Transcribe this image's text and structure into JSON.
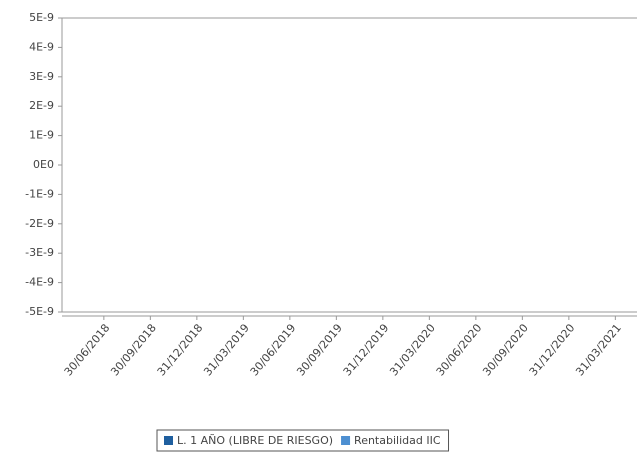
{
  "chart_data": {
    "type": "bar",
    "categories": [
      "30/06/2018",
      "30/09/2018",
      "31/12/2018",
      "31/03/2019",
      "30/06/2019",
      "30/09/2019",
      "31/12/2019",
      "31/03/2020",
      "30/06/2020",
      "30/09/2020",
      "31/12/2020",
      "31/03/2021"
    ],
    "series": [
      {
        "name": "L. 1 AÑO (LIBRE DE RIESGO)",
        "color": "#1f5f9f",
        "values": [
          null,
          null,
          null,
          null,
          null,
          null,
          null,
          null,
          null,
          null,
          null,
          null
        ]
      },
      {
        "name": "Rentabilidad IIC",
        "color": "#4d8fd1",
        "values": [
          null,
          null,
          null,
          null,
          null,
          null,
          null,
          null,
          null,
          null,
          null,
          null
        ]
      }
    ],
    "ylim": [
      -5e-09,
      5e-09
    ],
    "yticks": [
      {
        "value": 5e-09,
        "label": "5E-9"
      },
      {
        "value": 4e-09,
        "label": "4E-9"
      },
      {
        "value": 3e-09,
        "label": "3E-9"
      },
      {
        "value": 2e-09,
        "label": "2E-9"
      },
      {
        "value": 1e-09,
        "label": "1E-9"
      },
      {
        "value": 0,
        "label": "0E0"
      },
      {
        "value": -1e-09,
        "label": "-1E-9"
      },
      {
        "value": -2e-09,
        "label": "-2E-9"
      },
      {
        "value": -3e-09,
        "label": "-3E-9"
      },
      {
        "value": -4e-09,
        "label": "-4E-9"
      },
      {
        "value": -5e-09,
        "label": "-5E-9"
      }
    ],
    "grid": false,
    "legend": "bottom"
  }
}
